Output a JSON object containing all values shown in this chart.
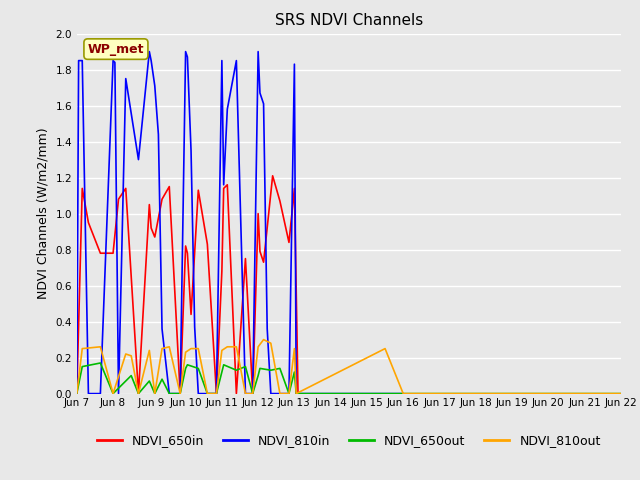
{
  "title": "SRS NDVI Channels",
  "ylabel": "NDVI Channels (W/m2/mm)",
  "ylim": [
    0.0,
    2.0
  ],
  "yticks": [
    0.0,
    0.2,
    0.4,
    0.6,
    0.8,
    1.0,
    1.2,
    1.4,
    1.6,
    1.8,
    2.0
  ],
  "annotation_text": "WP_met",
  "annotation_color": "#8B0000",
  "annotation_bg": "#FFFFC0",
  "annotation_border": "#999900",
  "series": {
    "NDVI_650in": {
      "color": "#FF0000",
      "x": [
        7.0,
        7.15,
        7.32,
        7.65,
        8.0,
        8.15,
        8.35,
        8.7,
        9.0,
        9.05,
        9.15,
        9.35,
        9.55,
        9.85,
        10.0,
        10.05,
        10.15,
        10.35,
        10.6,
        10.85,
        11.0,
        11.05,
        11.15,
        11.4,
        11.65,
        11.85,
        12.0,
        12.05,
        12.15,
        12.4,
        12.6,
        12.85,
        13.0,
        13.1
      ],
      "y": [
        0.0,
        1.14,
        0.95,
        0.78,
        0.78,
        1.08,
        1.14,
        0.0,
        1.05,
        0.92,
        0.87,
        1.08,
        1.15,
        0.0,
        0.82,
        0.78,
        0.44,
        1.13,
        0.83,
        0.0,
        0.68,
        1.14,
        1.16,
        0.0,
        0.75,
        0.0,
        1.0,
        0.79,
        0.73,
        1.21,
        1.07,
        0.84,
        1.14,
        0.0
      ]
    },
    "NDVI_810in": {
      "color": "#0000FF",
      "x": [
        7.0,
        7.05,
        7.15,
        7.32,
        7.65,
        8.0,
        8.05,
        8.15,
        8.35,
        8.7,
        9.0,
        9.05,
        9.15,
        9.25,
        9.35,
        9.55,
        9.85,
        10.0,
        10.05,
        10.15,
        10.25,
        10.35,
        10.6,
        10.85,
        11.0,
        11.05,
        11.15,
        11.4,
        11.65,
        11.85,
        12.0,
        12.05,
        12.15,
        12.25,
        12.35,
        12.6,
        12.85,
        13.0,
        13.05,
        13.5,
        14.5,
        16.0
      ],
      "y": [
        0.0,
        1.85,
        1.85,
        0.0,
        0.0,
        1.85,
        1.84,
        0.0,
        1.75,
        1.3,
        1.9,
        1.85,
        1.71,
        1.44,
        0.36,
        0.0,
        0.0,
        1.9,
        1.87,
        1.35,
        0.37,
        0.0,
        0.0,
        0.0,
        1.85,
        1.16,
        1.58,
        1.85,
        0.0,
        0.0,
        1.9,
        1.67,
        1.61,
        0.36,
        0.0,
        0.0,
        0.0,
        1.83,
        0.0,
        0.0,
        0.0,
        0.0
      ]
    },
    "NDVI_650out": {
      "color": "#00BB00",
      "x": [
        7.0,
        7.15,
        7.65,
        8.0,
        8.35,
        8.5,
        8.7,
        9.0,
        9.15,
        9.35,
        9.55,
        9.85,
        10.0,
        10.05,
        10.35,
        10.6,
        10.85,
        11.0,
        11.05,
        11.4,
        11.65,
        11.85,
        12.0,
        12.05,
        12.35,
        12.6,
        12.85,
        13.0,
        13.05,
        22.0
      ],
      "y": [
        0.0,
        0.15,
        0.17,
        0.0,
        0.07,
        0.1,
        0.0,
        0.07,
        0.0,
        0.08,
        0.0,
        0.0,
        0.14,
        0.16,
        0.14,
        0.0,
        0.0,
        0.12,
        0.16,
        0.13,
        0.15,
        0.0,
        0.1,
        0.14,
        0.13,
        0.14,
        0.0,
        0.12,
        0.0,
        0.0
      ]
    },
    "NDVI_810out": {
      "color": "#FFA500",
      "x": [
        7.0,
        7.15,
        7.65,
        8.0,
        8.35,
        8.5,
        8.7,
        9.0,
        9.15,
        9.35,
        9.55,
        9.85,
        10.0,
        10.15,
        10.35,
        10.6,
        10.85,
        11.0,
        11.15,
        11.4,
        11.65,
        11.85,
        12.0,
        12.15,
        12.35,
        12.6,
        12.85,
        13.0,
        13.05,
        15.5,
        16.0,
        22.0
      ],
      "y": [
        0.0,
        0.25,
        0.26,
        0.0,
        0.22,
        0.21,
        0.0,
        0.24,
        0.0,
        0.25,
        0.26,
        0.0,
        0.23,
        0.25,
        0.25,
        0.0,
        0.0,
        0.24,
        0.26,
        0.26,
        0.0,
        0.0,
        0.26,
        0.3,
        0.28,
        0.0,
        0.0,
        0.25,
        0.0,
        0.25,
        0.0,
        0.0
      ]
    }
  },
  "xtick_labels": [
    "Jun 7",
    "Jun 8",
    " Jun 9",
    "Jun 10",
    "Jun 11",
    "Jun 12",
    "Jun 13",
    "Jun 14",
    "Jun 15",
    "Jun 16",
    "Jun 17",
    "Jun 18",
    "Jun 19",
    "Jun 20",
    "Jun 21",
    "Jun 22"
  ],
  "xtick_positions": [
    7,
    8,
    9,
    10,
    11,
    12,
    13,
    14,
    15,
    16,
    17,
    18,
    19,
    20,
    21,
    22
  ],
  "xlim": [
    7,
    22
  ],
  "legend_entries": [
    "NDVI_650in",
    "NDVI_810in",
    "NDVI_650out",
    "NDVI_810out"
  ],
  "legend_colors": [
    "#FF0000",
    "#0000FF",
    "#00BB00",
    "#FFA500"
  ],
  "bg_color": "#E8E8E8",
  "plot_bg_color": "#E8E8E8",
  "grid_color": "#FFFFFF",
  "title_fontsize": 11,
  "label_fontsize": 9,
  "tick_fontsize": 7.5
}
